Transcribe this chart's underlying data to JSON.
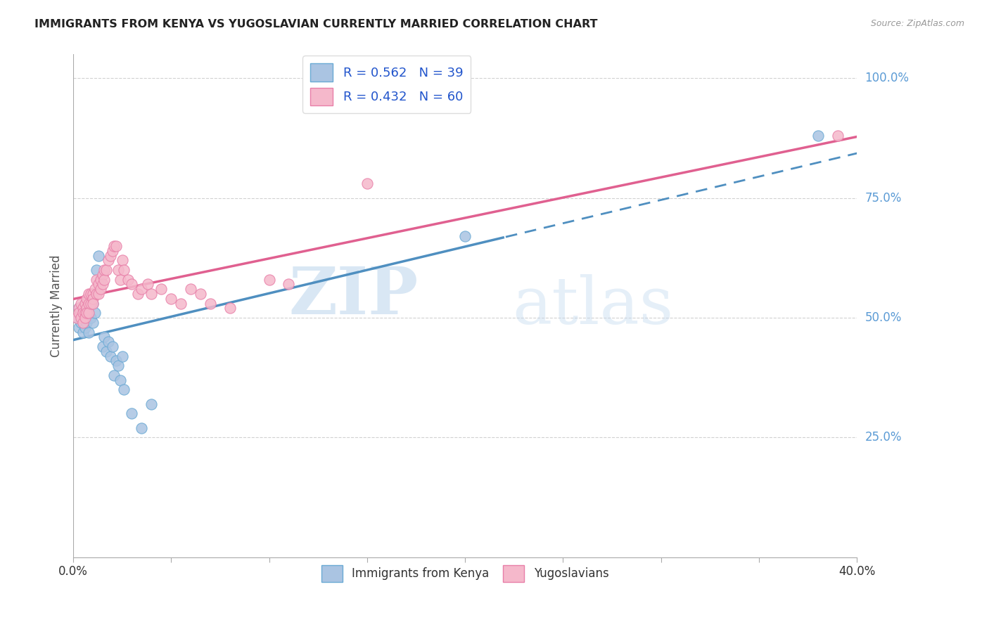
{
  "title": "IMMIGRANTS FROM KENYA VS YUGOSLAVIAN CURRENTLY MARRIED CORRELATION CHART",
  "source": "Source: ZipAtlas.com",
  "ylabel": "Currently Married",
  "yticks_labels": [
    "25.0%",
    "50.0%",
    "75.0%",
    "100.0%"
  ],
  "ytick_vals": [
    0.25,
    0.5,
    0.75,
    1.0
  ],
  "xlim": [
    0.0,
    0.4
  ],
  "ylim": [
    0.0,
    1.05
  ],
  "legend_r1": "R = 0.562   N = 39",
  "legend_r2": "R = 0.432   N = 60",
  "kenya_fill_color": "#aac4e2",
  "kenya_edge_color": "#6aaad4",
  "yugoslav_fill_color": "#f5b8cb",
  "yugoslav_edge_color": "#e87fa8",
  "kenya_line_color": "#4f8fc0",
  "yugoslav_line_color": "#e06090",
  "kenya_scatter": [
    [
      0.002,
      0.5
    ],
    [
      0.003,
      0.52
    ],
    [
      0.003,
      0.48
    ],
    [
      0.004,
      0.51
    ],
    [
      0.004,
      0.49
    ],
    [
      0.005,
      0.52
    ],
    [
      0.005,
      0.5
    ],
    [
      0.005,
      0.47
    ],
    [
      0.006,
      0.53
    ],
    [
      0.006,
      0.51
    ],
    [
      0.006,
      0.48
    ],
    [
      0.007,
      0.52
    ],
    [
      0.007,
      0.49
    ],
    [
      0.008,
      0.51
    ],
    [
      0.008,
      0.47
    ],
    [
      0.009,
      0.5
    ],
    [
      0.01,
      0.53
    ],
    [
      0.01,
      0.49
    ],
    [
      0.011,
      0.51
    ],
    [
      0.012,
      0.6
    ],
    [
      0.013,
      0.63
    ],
    [
      0.014,
      0.58
    ],
    [
      0.015,
      0.44
    ],
    [
      0.016,
      0.46
    ],
    [
      0.017,
      0.43
    ],
    [
      0.018,
      0.45
    ],
    [
      0.019,
      0.42
    ],
    [
      0.02,
      0.44
    ],
    [
      0.021,
      0.38
    ],
    [
      0.022,
      0.41
    ],
    [
      0.023,
      0.4
    ],
    [
      0.024,
      0.37
    ],
    [
      0.025,
      0.42
    ],
    [
      0.026,
      0.35
    ],
    [
      0.03,
      0.3
    ],
    [
      0.035,
      0.27
    ],
    [
      0.04,
      0.32
    ],
    [
      0.2,
      0.67
    ],
    [
      0.38,
      0.88
    ]
  ],
  "yugoslav_scatter": [
    [
      0.002,
      0.5
    ],
    [
      0.003,
      0.52
    ],
    [
      0.003,
      0.51
    ],
    [
      0.004,
      0.53
    ],
    [
      0.004,
      0.5
    ],
    [
      0.005,
      0.52
    ],
    [
      0.005,
      0.51
    ],
    [
      0.005,
      0.49
    ],
    [
      0.006,
      0.53
    ],
    [
      0.006,
      0.51
    ],
    [
      0.006,
      0.5
    ],
    [
      0.007,
      0.54
    ],
    [
      0.007,
      0.52
    ],
    [
      0.007,
      0.51
    ],
    [
      0.008,
      0.55
    ],
    [
      0.008,
      0.53
    ],
    [
      0.008,
      0.51
    ],
    [
      0.009,
      0.55
    ],
    [
      0.009,
      0.53
    ],
    [
      0.01,
      0.55
    ],
    [
      0.01,
      0.54
    ],
    [
      0.01,
      0.53
    ],
    [
      0.011,
      0.56
    ],
    [
      0.012,
      0.58
    ],
    [
      0.012,
      0.55
    ],
    [
      0.013,
      0.57
    ],
    [
      0.013,
      0.55
    ],
    [
      0.014,
      0.58
    ],
    [
      0.014,
      0.56
    ],
    [
      0.015,
      0.59
    ],
    [
      0.015,
      0.57
    ],
    [
      0.016,
      0.6
    ],
    [
      0.016,
      0.58
    ],
    [
      0.017,
      0.6
    ],
    [
      0.018,
      0.62
    ],
    [
      0.019,
      0.63
    ],
    [
      0.02,
      0.64
    ],
    [
      0.021,
      0.65
    ],
    [
      0.022,
      0.65
    ],
    [
      0.023,
      0.6
    ],
    [
      0.024,
      0.58
    ],
    [
      0.025,
      0.62
    ],
    [
      0.026,
      0.6
    ],
    [
      0.028,
      0.58
    ],
    [
      0.03,
      0.57
    ],
    [
      0.033,
      0.55
    ],
    [
      0.035,
      0.56
    ],
    [
      0.038,
      0.57
    ],
    [
      0.04,
      0.55
    ],
    [
      0.045,
      0.56
    ],
    [
      0.05,
      0.54
    ],
    [
      0.055,
      0.53
    ],
    [
      0.06,
      0.56
    ],
    [
      0.065,
      0.55
    ],
    [
      0.07,
      0.53
    ],
    [
      0.08,
      0.52
    ],
    [
      0.1,
      0.58
    ],
    [
      0.11,
      0.57
    ],
    [
      0.15,
      0.78
    ],
    [
      0.39,
      0.88
    ]
  ],
  "watermark_zip": "ZIP",
  "watermark_atlas": "atlas",
  "background_color": "#ffffff",
  "grid_color": "#cccccc"
}
